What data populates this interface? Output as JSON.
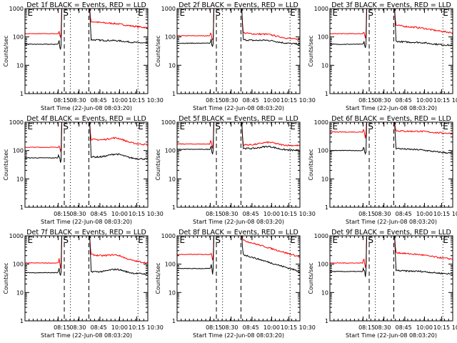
{
  "figure": {
    "xlabel": "Start Time (22-Jun-08 08:03:20)",
    "ylabel": "Counts/sec",
    "x_ticks": [
      "08:15",
      "08:30",
      "08:45",
      "10:00",
      "10:15",
      "10:30"
    ],
    "y_ticks": [
      "1000",
      "100",
      "10",
      "1"
    ],
    "colors": {
      "events": "#000000",
      "lld": "#ff0000",
      "axes": "#000000"
    }
  },
  "chart_data": [
    {
      "type": "line",
      "title": "Det 1f BLACK = Events, RED = LLD",
      "marker_labels": [
        "E",
        "S",
        "E"
      ],
      "ylim": [
        1,
        1000
      ],
      "yscale": "log",
      "series": [
        {
          "name": "LLD",
          "color": "#ff0000",
          "pre": 130,
          "peak": 1500,
          "post": 350,
          "end": 210,
          "bump": 0.05
        },
        {
          "name": "Events",
          "color": "#000000",
          "pre": 55,
          "peak": 1500,
          "post": 80,
          "end": 60,
          "bump": 0.05
        }
      ]
    },
    {
      "type": "line",
      "title": "Det 2f BLACK = Events, RED = LLD",
      "marker_labels": [
        "E",
        "S",
        "E"
      ],
      "ylim": [
        1,
        1000
      ],
      "yscale": "log",
      "series": [
        {
          "name": "LLD",
          "color": "#ff0000",
          "pre": 110,
          "peak": 1500,
          "post": 140,
          "end": 80,
          "bump": 0.12
        },
        {
          "name": "Events",
          "color": "#000000",
          "pre": 60,
          "peak": 1500,
          "post": 80,
          "end": 55,
          "bump": 0.12
        }
      ]
    },
    {
      "type": "line",
      "title": "Det 3f BLACK = Events, RED = LLD",
      "marker_labels": [
        "E",
        "S",
        "E"
      ],
      "ylim": [
        1,
        1000
      ],
      "yscale": "log",
      "series": [
        {
          "name": "LLD",
          "color": "#ff0000",
          "pre": 130,
          "peak": 1500,
          "post": 260,
          "end": 140,
          "bump": 0.05
        },
        {
          "name": "Events",
          "color": "#000000",
          "pre": 55,
          "peak": 1500,
          "post": 70,
          "end": 50,
          "bump": 0.05
        }
      ]
    },
    {
      "type": "line",
      "title": "Det 4f BLACK = Events, RED = LLD",
      "marker_labels": [
        "E",
        "S",
        "E"
      ],
      "ylim": [
        1,
        1000
      ],
      "yscale": "log",
      "series": [
        {
          "name": "LLD",
          "color": "#ff0000",
          "pre": 130,
          "peak": 1500,
          "post": 250,
          "end": 160,
          "bump": 0.35
        },
        {
          "name": "Events",
          "color": "#000000",
          "pre": 55,
          "peak": 1500,
          "post": 60,
          "end": 50,
          "bump": 0.35
        }
      ]
    },
    {
      "type": "line",
      "title": "Det 5f BLACK = Events, RED = LLD",
      "marker_labels": [
        "E",
        "S",
        "E"
      ],
      "ylim": [
        1,
        1000
      ],
      "yscale": "log",
      "series": [
        {
          "name": "LLD",
          "color": "#ff0000",
          "pre": 170,
          "peak": 1500,
          "post": 160,
          "end": 150,
          "bump": 0.25
        },
        {
          "name": "Events",
          "color": "#000000",
          "pre": 110,
          "peak": 1500,
          "post": 120,
          "end": 100,
          "bump": 0.25
        }
      ]
    },
    {
      "type": "line",
      "title": "Det 6f BLACK = Events, RED = LLD",
      "marker_labels": [
        "E",
        "S",
        "E"
      ],
      "ylim": [
        1,
        1000
      ],
      "yscale": "log",
      "series": [
        {
          "name": "LLD",
          "color": "#ff0000",
          "pre": 450,
          "peak": 1500,
          "post": 500,
          "end": 400,
          "bump": 0.05
        },
        {
          "name": "Events",
          "color": "#000000",
          "pre": 100,
          "peak": 1500,
          "post": 120,
          "end": 80,
          "bump": 0.05
        }
      ]
    },
    {
      "type": "line",
      "title": "Det 7f BLACK = Events, RED = LLD",
      "marker_labels": [
        "E",
        "S",
        "E"
      ],
      "ylim": [
        1,
        1000
      ],
      "yscale": "log",
      "series": [
        {
          "name": "LLD",
          "color": "#ff0000",
          "pre": 110,
          "peak": 1500,
          "post": 220,
          "end": 110,
          "bump": 0.3
        },
        {
          "name": "Events",
          "color": "#000000",
          "pre": 50,
          "peak": 1500,
          "post": 55,
          "end": 45,
          "bump": 0.3
        }
      ]
    },
    {
      "type": "line",
      "title": "Det 8f BLACK = Events, RED = LLD",
      "marker_labels": [
        "E",
        "S",
        "E"
      ],
      "ylim": [
        1,
        1000
      ],
      "yscale": "log",
      "series": [
        {
          "name": "LLD",
          "color": "#ff0000",
          "pre": 220,
          "peak": 1500,
          "post": 700,
          "end": 180,
          "bump": 0.0
        },
        {
          "name": "Events",
          "color": "#000000",
          "pre": 70,
          "peak": 1500,
          "post": 220,
          "end": 55,
          "bump": 0.0
        }
      ]
    },
    {
      "type": "line",
      "title": "Det 9f BLACK = Events, RED = LLD",
      "marker_labels": [
        "E",
        "S",
        "E"
      ],
      "ylim": [
        1,
        1000
      ],
      "yscale": "log",
      "series": [
        {
          "name": "LLD",
          "color": "#ff0000",
          "pre": 110,
          "peak": 1500,
          "post": 260,
          "end": 150,
          "bump": 0.05
        },
        {
          "name": "Events",
          "color": "#000000",
          "pre": 55,
          "peak": 1500,
          "post": 60,
          "end": 45,
          "bump": 0.05
        }
      ]
    }
  ]
}
